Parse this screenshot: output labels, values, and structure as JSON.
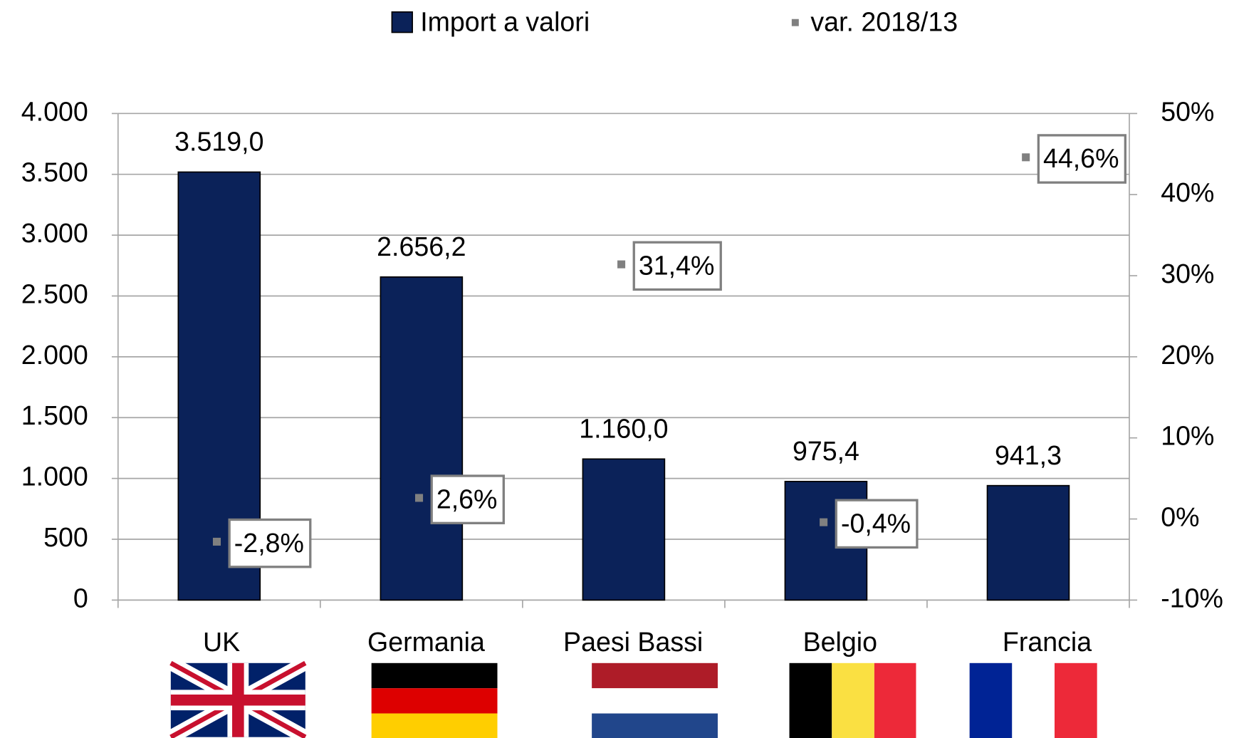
{
  "chart_data": {
    "type": "bar",
    "categories": [
      "UK",
      "Germania",
      "Paesi Bassi",
      "Belgio",
      "Francia"
    ],
    "series": [
      {
        "name": "Import a valori",
        "type": "bar",
        "color": "#0b2259",
        "values": [
          3519.0,
          2656.2,
          1160.0,
          975.4,
          941.3
        ],
        "value_labels": [
          "3.519,0",
          "2.656,2",
          "1.160,0",
          "975,4",
          "941,3"
        ]
      },
      {
        "name": "var. 2018/13",
        "type": "scatter",
        "axis": "y2",
        "color": "#808080",
        "values": [
          -2.8,
          2.6,
          31.4,
          -0.4,
          44.6
        ],
        "value_labels": [
          "-2,8%",
          "2,6%",
          "31,4%",
          "-0,4%",
          "44,6%"
        ]
      }
    ],
    "ylim": [
      0,
      4000
    ],
    "yticks": [
      {
        "value": 0,
        "label": "0"
      },
      {
        "value": 500,
        "label": "500"
      },
      {
        "value": 1000,
        "label": "1.000"
      },
      {
        "value": 1500,
        "label": "1.500"
      },
      {
        "value": 2000,
        "label": "2.000"
      },
      {
        "value": 2500,
        "label": "2.500"
      },
      {
        "value": 3000,
        "label": "3.000"
      },
      {
        "value": 3500,
        "label": "3.500"
      },
      {
        "value": 4000,
        "label": "4.000"
      }
    ],
    "y2lim": [
      -10,
      50
    ],
    "y2ticks": [
      {
        "value": -10,
        "label": "-10%"
      },
      {
        "value": 0,
        "label": "0%"
      },
      {
        "value": 10,
        "label": "10%"
      },
      {
        "value": 20,
        "label": "20%"
      },
      {
        "value": 30,
        "label": "30%"
      },
      {
        "value": 40,
        "label": "40%"
      },
      {
        "value": 50,
        "label": "50%"
      }
    ],
    "grid": true,
    "legend": "top"
  }
}
